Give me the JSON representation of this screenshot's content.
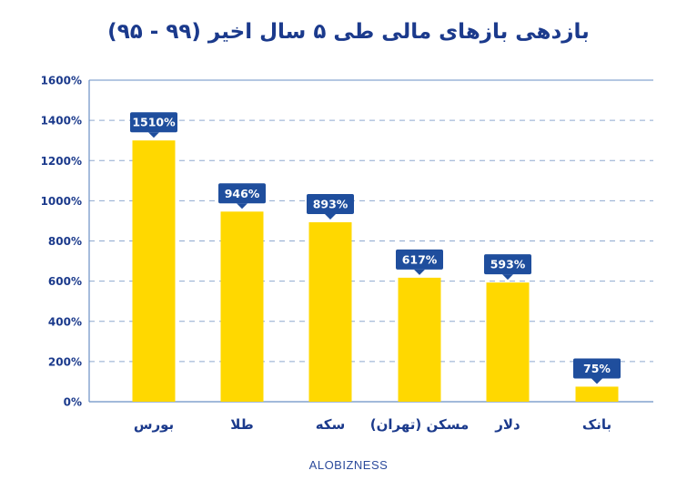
{
  "chart_data": {
    "type": "bar",
    "title": "بازدهی بازهای مالی طی ۵ سال اخیر (۹۹ - ۹۵)",
    "categories": [
      "بورس",
      "طلا",
      "سکه",
      "مسکن (تهران)",
      "دلار",
      "بانک"
    ],
    "values": [
      1510,
      946,
      893,
      617,
      593,
      75
    ],
    "value_labels": [
      "1510%",
      "946%",
      "893%",
      "617%",
      "593%",
      "75%"
    ],
    "ylim": [
      0,
      1600
    ],
    "yticks": [
      0,
      200,
      400,
      600,
      800,
      1000,
      1200,
      1400,
      1600
    ],
    "ytick_labels": [
      "0%",
      "200%",
      "400%",
      "600%",
      "800%",
      "1000%",
      "1200%",
      "1400%",
      "1600%"
    ],
    "xlabel": "",
    "ylabel": "",
    "grid": true,
    "legend": "none",
    "colors": {
      "bar": "#ffd800",
      "label_bg": "#1f4e9d",
      "label_text": "#ffffff",
      "axis": "#6a8fc4",
      "grid": "#8fa9cf",
      "tick_text": "#1b3a8c",
      "title": "#1b3a8c"
    }
  },
  "footer": "ALOBIZNESS"
}
